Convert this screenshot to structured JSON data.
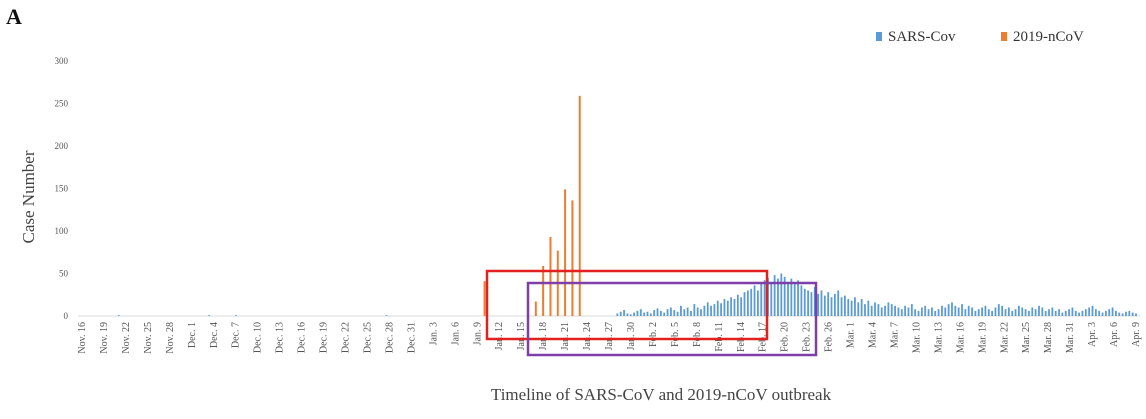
{
  "panel_label": "A",
  "chart_data": {
    "type": "bar",
    "title": "",
    "xlabel": "Timeline of SARS-CoV and 2019-nCoV outbreak",
    "ylabel": "Case Number",
    "ylim": [
      0,
      300
    ],
    "yticks": [
      0,
      50,
      100,
      150,
      200,
      250,
      300
    ],
    "grid": false,
    "legend_position": "top-right",
    "x_tick_labels": [
      "Nov. 16",
      "Nov. 19",
      "Nov. 22",
      "Nov. 25",
      "Nov. 28",
      "Dec. 1",
      "Dec. 4",
      "Dec. 7",
      "Dec. 10",
      "Dec. 13",
      "Dec. 16",
      "Dec. 19",
      "Dec. 22",
      "Dec. 25",
      "Dec. 28",
      "Dec. 31",
      "Jan. 3",
      "Jan. 6",
      "Jan. 9",
      "Jan. 12",
      "Jan. 15",
      "Jan. 18",
      "Jan. 21",
      "Jan. 24",
      "Jan. 27",
      "Jan. 30",
      "Feb. 2",
      "Feb. 5",
      "Feb. 8",
      "Feb. 11",
      "Feb. 14",
      "Feb. 17",
      "Feb. 20",
      "Feb. 23",
      "Feb. 26",
      "Mar. 1",
      "Mar. 4",
      "Mar. 7",
      "Mar. 10",
      "Mar. 13",
      "Mar. 16",
      "Mar. 19",
      "Mar. 22",
      "Mar. 25",
      "Mar. 28",
      "Mar. 31",
      "Apr. 3",
      "Apr. 6",
      "Apr. 9"
    ],
    "series": [
      {
        "name": "SARS-Cov",
        "color": "#5b9bd5",
        "values": [
          0,
          0,
          0,
          0,
          0,
          0,
          0,
          0,
          0,
          0,
          0,
          1,
          0,
          0,
          0,
          0,
          0,
          0,
          0,
          0,
          0,
          0,
          0,
          0,
          0,
          0,
          0,
          0,
          0,
          0,
          0,
          0,
          0,
          0,
          0,
          0,
          0,
          0,
          1,
          0,
          0,
          0,
          0,
          0,
          0,
          0,
          1,
          0,
          0,
          0,
          0,
          0,
          0,
          0,
          0,
          0,
          0,
          0,
          0,
          0,
          0,
          0,
          0,
          0,
          0,
          0,
          0,
          0,
          0,
          0,
          0,
          0,
          0,
          0,
          0,
          0,
          0,
          0,
          0,
          0,
          0,
          0,
          0,
          0,
          0,
          0,
          0,
          0,
          0,
          0,
          0,
          1,
          0,
          0,
          0,
          0,
          0,
          0,
          0,
          0,
          0,
          0,
          0,
          0,
          0,
          0,
          0,
          0,
          0,
          0,
          0,
          0,
          0,
          0,
          0,
          0,
          0,
          0,
          0,
          0,
          0,
          0,
          0,
          0,
          0,
          0,
          0,
          0,
          0,
          0,
          0,
          0,
          0,
          0,
          0,
          0,
          0,
          0,
          0,
          0,
          0,
          0,
          0,
          0,
          0,
          0,
          0,
          0,
          0,
          0,
          0,
          0,
          0,
          0,
          0,
          0,
          0,
          0,
          0,
          0,
          3,
          5,
          7,
          3,
          2,
          4,
          6,
          8,
          4,
          5,
          3,
          7,
          9,
          6,
          4,
          8,
          10,
          7,
          5,
          12,
          8,
          10,
          6,
          14,
          10,
          8,
          12,
          16,
          12,
          14,
          18,
          15,
          20,
          18,
          22,
          20,
          25,
          22,
          28,
          30,
          32,
          36,
          30,
          40,
          42,
          45,
          38,
          48,
          44,
          50,
          46,
          40,
          44,
          38,
          42,
          36,
          32,
          30,
          28,
          34,
          26,
          30,
          24,
          28,
          22,
          26,
          30,
          22,
          24,
          20,
          18,
          22,
          16,
          20,
          14,
          18,
          12,
          16,
          14,
          10,
          12,
          16,
          14,
          12,
          10,
          8,
          12,
          10,
          14,
          8,
          6,
          10,
          12,
          8,
          10,
          6,
          8,
          12,
          10,
          14,
          16,
          12,
          10,
          14,
          8,
          12,
          10,
          6,
          8,
          10,
          12,
          8,
          6,
          10,
          14,
          12,
          8,
          10,
          6,
          8,
          12,
          10,
          8,
          6,
          10,
          8,
          12,
          10,
          6,
          8,
          10,
          6,
          8,
          4,
          6,
          8,
          10,
          6,
          4,
          6,
          8,
          10,
          12,
          8,
          6,
          4,
          6,
          8,
          10,
          6,
          4,
          3,
          5,
          6,
          4,
          3
        ]
      },
      {
        "name": "2019-nCoV",
        "color": "#ed7d31",
        "events": [
          {
            "date": "Jan. 10",
            "value": 41
          },
          {
            "date": "Jan. 17",
            "value": 17
          },
          {
            "date": "Jan. 18",
            "value": 59
          },
          {
            "date": "Jan. 19",
            "value": 93
          },
          {
            "date": "Jan. 20",
            "value": 77
          },
          {
            "date": "Jan. 21",
            "value": 149
          },
          {
            "date": "Jan. 22",
            "value": 136
          },
          {
            "date": "Jan. 23",
            "value": 259
          }
        ]
      }
    ]
  },
  "annotations": {
    "red_box_color": "#e0211f",
    "purple_box_color": "#7e3fa8"
  }
}
